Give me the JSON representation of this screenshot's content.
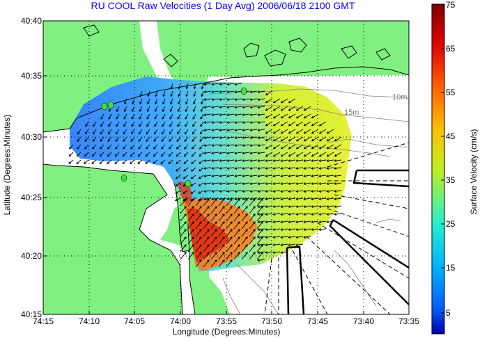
{
  "title": "RU COOL Raw Velocities (1 Day Avg) 2006/06/18 2100 GMT",
  "axes": {
    "ylabel": "Latitude (Degrees:Minutes)",
    "xlabel": "Longitude (Degrees:Minutes)",
    "lat_ticks": [
      "40:40",
      "40:35",
      "40:30",
      "40:25",
      "40:20",
      "40:15"
    ],
    "lon_ticks": [
      "74:15",
      "74:10",
      "74:05",
      "74:00",
      "73:55",
      "73:50",
      "73:45",
      "73:40",
      "73:35"
    ],
    "grid": true
  },
  "colorbar": {
    "title": "Surface Velocity (cm/s)",
    "ticks": [
      "75",
      "65",
      "55",
      "45",
      "35",
      "25",
      "15",
      "5"
    ],
    "range": [
      0,
      75
    ],
    "colormap": "jet"
  },
  "depth_labels": [
    "10m",
    "15m"
  ],
  "colors": {
    "land": "#80f080",
    "water": "#ffffff",
    "title": "#0000ff",
    "low_velocity": "#3080ff",
    "high_velocity": "#e02000"
  }
}
